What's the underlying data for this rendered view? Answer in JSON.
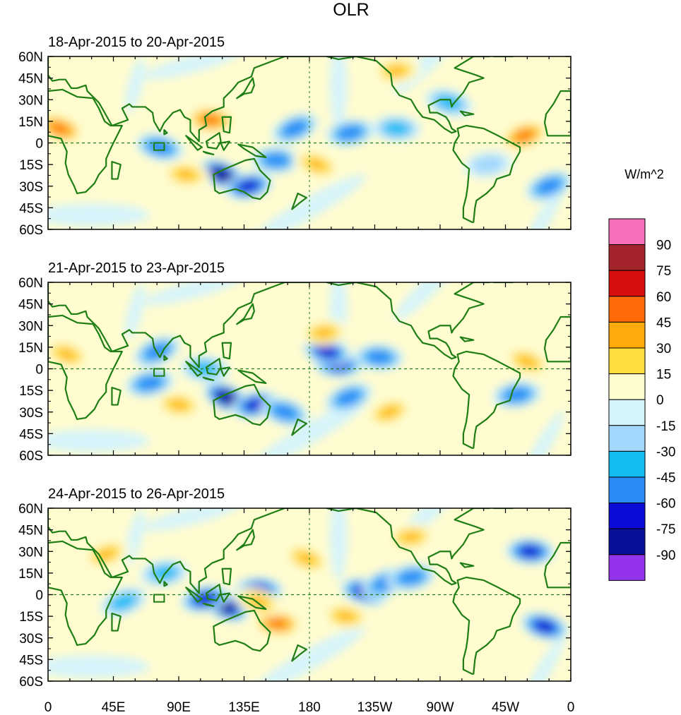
{
  "chart_data": {
    "type": "heatmap",
    "title": "OLR",
    "units_label": "W/m^2",
    "lat_labels": [
      "60N",
      "45N",
      "30N",
      "15N",
      "0",
      "15S",
      "30S",
      "45S",
      "60S"
    ],
    "lon_labels": [
      "0",
      "45E",
      "90E",
      "135E",
      "180",
      "135W",
      "90W",
      "45W",
      "0"
    ],
    "colorbar": {
      "levels": [
        90,
        75,
        60,
        45,
        30,
        15,
        0,
        -15,
        -30,
        -45,
        -60,
        -75,
        -90
      ],
      "colors": [
        "#f56fb8",
        "#a3242a",
        "#d60e0e",
        "#ff6a08",
        "#ffa90a",
        "#ffdd3c",
        "#fffccf",
        "#d6f4fb",
        "#a3d7fb",
        "#12bdf4",
        "#2a8cf6",
        "#0c0bd5",
        "#080f98",
        "#9433ec"
      ]
    },
    "panels": [
      {
        "label": "18-Apr-2015 to 20-Apr-2015",
        "anomalies": [
          {
            "lon": 120,
            "lat": -22,
            "value": -90
          },
          {
            "lon": 138,
            "lat": -30,
            "value": -75
          },
          {
            "lon": 157,
            "lat": -12,
            "value": -60
          },
          {
            "lon": 77,
            "lat": -3,
            "value": -60
          },
          {
            "lon": 170,
            "lat": 10,
            "value": -60
          },
          {
            "lon": 208,
            "lat": 7,
            "value": -60
          },
          {
            "lon": 240,
            "lat": 10,
            "value": -45
          },
          {
            "lon": 276,
            "lat": 28,
            "value": -45
          },
          {
            "lon": 345,
            "lat": -30,
            "value": -60
          },
          {
            "lon": 303,
            "lat": -15,
            "value": -30
          },
          {
            "lon": 112,
            "lat": 16,
            "value": 45
          },
          {
            "lon": 8,
            "lat": 10,
            "value": 45
          },
          {
            "lon": 328,
            "lat": 5,
            "value": 45
          },
          {
            "lon": 240,
            "lat": 50,
            "value": 30
          },
          {
            "lon": 95,
            "lat": -22,
            "value": 30
          },
          {
            "lon": 185,
            "lat": -15,
            "value": 30
          }
        ]
      },
      {
        "label": "21-Apr-2015 to 23-Apr-2015",
        "anomalies": [
          {
            "lon": 123,
            "lat": -20,
            "value": -90
          },
          {
            "lon": 143,
            "lat": -25,
            "value": -75
          },
          {
            "lon": 200,
            "lat": 3,
            "value": -75
          },
          {
            "lon": 192,
            "lat": 12,
            "value": -75
          },
          {
            "lon": 75,
            "lat": 12,
            "value": -60
          },
          {
            "lon": 70,
            "lat": -10,
            "value": -60
          },
          {
            "lon": 228,
            "lat": 8,
            "value": -60
          },
          {
            "lon": 163,
            "lat": -30,
            "value": -60
          },
          {
            "lon": 207,
            "lat": -20,
            "value": -60
          },
          {
            "lon": 323,
            "lat": -18,
            "value": -60
          },
          {
            "lon": 108,
            "lat": 0,
            "value": -45
          },
          {
            "lon": 13,
            "lat": 10,
            "value": 30
          },
          {
            "lon": 235,
            "lat": -30,
            "value": 30
          },
          {
            "lon": 190,
            "lat": 25,
            "value": 30
          },
          {
            "lon": 90,
            "lat": -25,
            "value": 30
          },
          {
            "lon": 330,
            "lat": 5,
            "value": 30
          }
        ]
      },
      {
        "label": "24-Apr-2015 to 26-Apr-2015",
        "anomalies": [
          {
            "lon": 122,
            "lat": -8,
            "value": -90
          },
          {
            "lon": 108,
            "lat": -3,
            "value": -75
          },
          {
            "lon": 145,
            "lat": 3,
            "value": -75
          },
          {
            "lon": 218,
            "lat": 2,
            "value": -75
          },
          {
            "lon": 232,
            "lat": 8,
            "value": -60
          },
          {
            "lon": 250,
            "lat": 12,
            "value": -60
          },
          {
            "lon": 332,
            "lat": 30,
            "value": -75
          },
          {
            "lon": 342,
            "lat": -22,
            "value": -75
          },
          {
            "lon": 52,
            "lat": -5,
            "value": -45
          },
          {
            "lon": 80,
            "lat": 15,
            "value": -45
          },
          {
            "lon": 158,
            "lat": -20,
            "value": 45
          },
          {
            "lon": 145,
            "lat": -5,
            "value": 30
          },
          {
            "lon": 40,
            "lat": 28,
            "value": 30
          },
          {
            "lon": 250,
            "lat": 40,
            "value": 30
          },
          {
            "lon": 205,
            "lat": -15,
            "value": 30
          },
          {
            "lon": 178,
            "lat": 25,
            "value": 30
          }
        ]
      }
    ]
  }
}
